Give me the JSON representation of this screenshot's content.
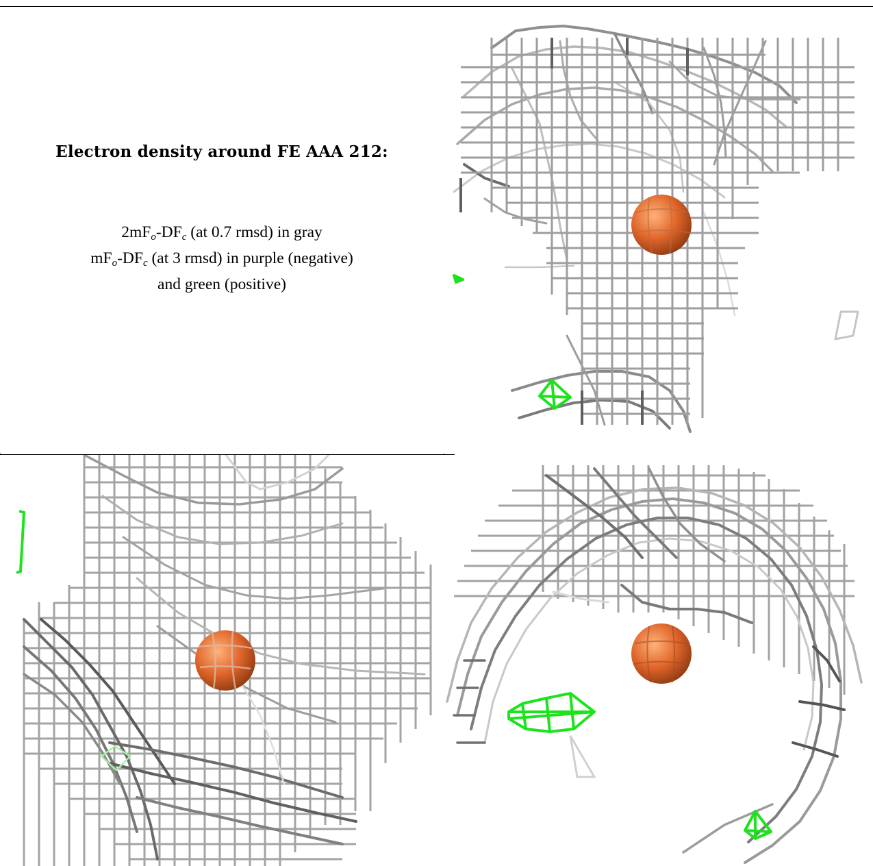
{
  "caption": {
    "title": "Electron density around FE AAA 212:",
    "lines": [
      {
        "a": "2mF",
        "b": "o",
        "c": "-DF",
        "d": "c",
        "e": " (at 0.7 rmsd) in gray"
      },
      {
        "a": "mF",
        "b": "o",
        "c": "-DF",
        "d": "c",
        "e": " (at 3 rmsd) in purple (negative)"
      },
      {
        "a": "",
        "b": "",
        "c": "",
        "d": "",
        "e": "and green (positive)"
      }
    ]
  },
  "colors": {
    "mesh_gray": "#9a9a9a",
    "mesh_light": "#d2d2d2",
    "mesh_dark": "#5e5e5e",
    "difference_positive": "#1ee21e",
    "iron_atom": "#e0652a"
  }
}
